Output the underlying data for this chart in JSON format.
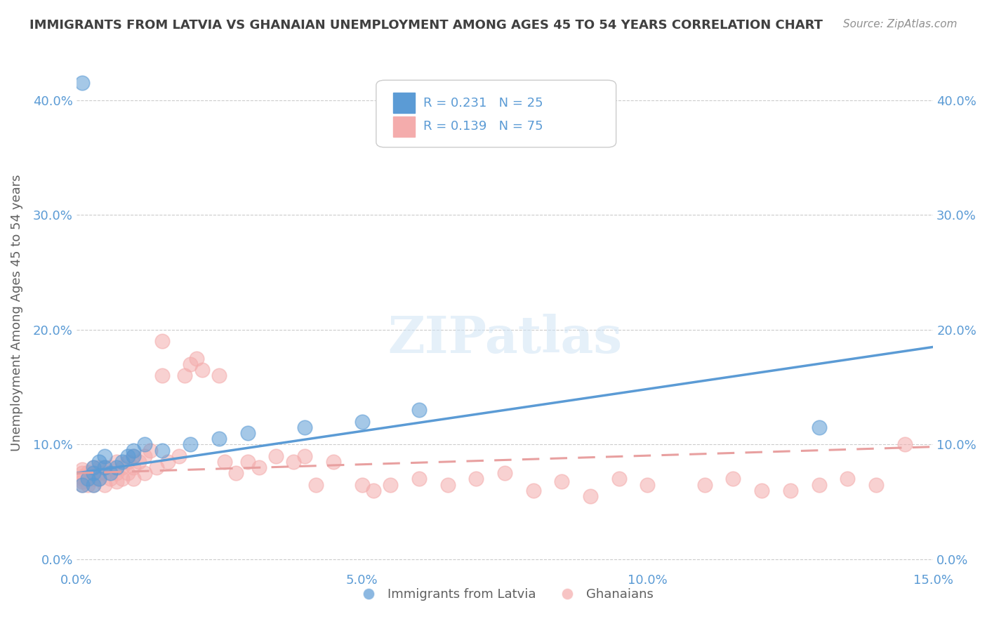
{
  "title": "IMMIGRANTS FROM LATVIA VS GHANAIAN UNEMPLOYMENT AMONG AGES 45 TO 54 YEARS CORRELATION CHART",
  "source": "Source: ZipAtlas.com",
  "xlabel": "",
  "ylabel": "Unemployment Among Ages 45 to 54 years",
  "xlim": [
    0.0,
    0.15
  ],
  "ylim": [
    -0.01,
    0.44
  ],
  "xticks": [
    0.0,
    0.05,
    0.1,
    0.15
  ],
  "xticklabels": [
    "0.0%",
    "5.0%",
    "10.0%",
    "15.0%"
  ],
  "yticks": [
    0.0,
    0.1,
    0.2,
    0.3,
    0.4
  ],
  "yticklabels": [
    "0.0%",
    "10.0%",
    "20.0%",
    "30.0%",
    "40.0%"
  ],
  "legend_blue_label": "Immigrants from Latvia",
  "legend_pink_label": "Ghanaians",
  "r_blue": "0.231",
  "n_blue": "25",
  "r_pink": "0.139",
  "n_pink": "75",
  "blue_color": "#5B9BD5",
  "pink_color": "#F4ACAC",
  "title_color": "#404040",
  "axis_color": "#5B9BD5",
  "background_color": "#FFFFFF",
  "watermark_text": "ZIPatlas",
  "blue_scatter_x": [
    0.001,
    0.002,
    0.003,
    0.003,
    0.003,
    0.004,
    0.004,
    0.005,
    0.005,
    0.006,
    0.007,
    0.008,
    0.009,
    0.01,
    0.01,
    0.012,
    0.015,
    0.02,
    0.025,
    0.03,
    0.04,
    0.05,
    0.06,
    0.13,
    0.001
  ],
  "blue_scatter_y": [
    0.065,
    0.07,
    0.065,
    0.075,
    0.08,
    0.07,
    0.085,
    0.08,
    0.09,
    0.075,
    0.08,
    0.085,
    0.09,
    0.09,
    0.095,
    0.1,
    0.095,
    0.1,
    0.105,
    0.11,
    0.115,
    0.12,
    0.13,
    0.115,
    0.415
  ],
  "pink_scatter_x": [
    0.001,
    0.001,
    0.001,
    0.001,
    0.001,
    0.001,
    0.002,
    0.002,
    0.002,
    0.002,
    0.003,
    0.003,
    0.003,
    0.003,
    0.004,
    0.004,
    0.004,
    0.005,
    0.005,
    0.005,
    0.006,
    0.006,
    0.007,
    0.007,
    0.007,
    0.008,
    0.008,
    0.009,
    0.009,
    0.01,
    0.01,
    0.01,
    0.011,
    0.012,
    0.012,
    0.013,
    0.014,
    0.015,
    0.015,
    0.016,
    0.018,
    0.019,
    0.02,
    0.021,
    0.022,
    0.025,
    0.026,
    0.028,
    0.03,
    0.032,
    0.035,
    0.038,
    0.04,
    0.042,
    0.045,
    0.05,
    0.052,
    0.055,
    0.06,
    0.065,
    0.07,
    0.075,
    0.08,
    0.085,
    0.09,
    0.095,
    0.1,
    0.11,
    0.115,
    0.12,
    0.125,
    0.13,
    0.135,
    0.14,
    0.145
  ],
  "pink_scatter_y": [
    0.065,
    0.068,
    0.07,
    0.072,
    0.075,
    0.078,
    0.065,
    0.07,
    0.073,
    0.076,
    0.065,
    0.07,
    0.075,
    0.08,
    0.07,
    0.075,
    0.08,
    0.065,
    0.075,
    0.08,
    0.07,
    0.08,
    0.068,
    0.075,
    0.085,
    0.07,
    0.08,
    0.075,
    0.085,
    0.07,
    0.08,
    0.09,
    0.085,
    0.075,
    0.09,
    0.095,
    0.08,
    0.16,
    0.19,
    0.085,
    0.09,
    0.16,
    0.17,
    0.175,
    0.165,
    0.16,
    0.085,
    0.075,
    0.085,
    0.08,
    0.09,
    0.085,
    0.09,
    0.065,
    0.085,
    0.065,
    0.06,
    0.065,
    0.07,
    0.065,
    0.07,
    0.075,
    0.06,
    0.068,
    0.055,
    0.07,
    0.065,
    0.065,
    0.07,
    0.06,
    0.06,
    0.065,
    0.07,
    0.065,
    0.1
  ],
  "blue_trend_x": [
    0.0,
    0.15
  ],
  "blue_trend_y": [
    0.075,
    0.185
  ],
  "pink_trend_x": [
    0.0,
    0.15
  ],
  "pink_trend_y": [
    0.075,
    0.098
  ]
}
